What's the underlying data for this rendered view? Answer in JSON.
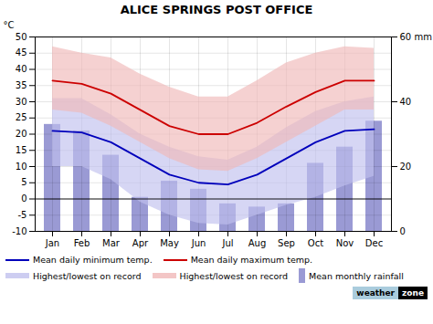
{
  "chart_data": {
    "type": "bar",
    "title": "ALICE SPRINGS POST OFFICE",
    "ylabel": "°C",
    "categories": [
      "Jan",
      "Feb",
      "Mar",
      "Apr",
      "May",
      "Jun",
      "Jul",
      "Aug",
      "Sep",
      "Oct",
      "Nov",
      "Dec"
    ],
    "series": [
      {
        "name": "Mean daily minimum temp.",
        "type": "line",
        "color": "#0000bb",
        "values": [
          21.0,
          20.5,
          17.5,
          12.5,
          7.5,
          5.0,
          4.5,
          7.5,
          12.5,
          17.5,
          21.0,
          21.5
        ]
      },
      {
        "name": "Mean daily maximum temp.",
        "type": "line",
        "color": "#cc0000",
        "values": [
          36.5,
          35.5,
          32.5,
          27.5,
          22.5,
          20.0,
          20.0,
          23.5,
          28.5,
          33.0,
          36.5,
          36.5
        ]
      },
      {
        "name": "Highest/lowest on record",
        "type": "band",
        "color": "#c0c0ee",
        "low": [
          10.0,
          10.0,
          6.0,
          -1.0,
          -5.0,
          -7.5,
          -8.0,
          -5.0,
          -2.0,
          0.5,
          4.0,
          7.0
        ],
        "high": [
          31.0,
          31.0,
          26.0,
          20.0,
          16.0,
          13.0,
          12.0,
          16.0,
          22.0,
          27.0,
          30.0,
          31.5
        ]
      },
      {
        "name": "Highest/lowest on record",
        "type": "band",
        "color": "#f0b8b8",
        "low": [
          27.5,
          26.5,
          22.5,
          17.5,
          12.5,
          9.0,
          8.5,
          12.5,
          17.5,
          22.5,
          27.5,
          27.5
        ],
        "high": [
          47.0,
          45.0,
          43.5,
          38.5,
          34.5,
          31.5,
          31.5,
          36.5,
          42.0,
          45.0,
          47.0,
          46.5
        ]
      },
      {
        "name": "Mean monthly rainfall",
        "type": "bar",
        "axis": "y2",
        "color": "#8888cc",
        "values": [
          33.0,
          31.0,
          23.5,
          10.5,
          15.5,
          13.0,
          8.5,
          7.5,
          8.5,
          21.0,
          26.0,
          34.0
        ]
      }
    ],
    "ylim": [
      -10,
      50
    ],
    "yticks": [
      -10,
      -5,
      0,
      5,
      10,
      15,
      20,
      25,
      30,
      35,
      40,
      45,
      50
    ],
    "y2lim": [
      0,
      60
    ],
    "y2ticks": [
      0,
      20,
      40,
      {
        "value": 60,
        "label": "60 mm"
      }
    ],
    "hlines": [
      0
    ],
    "grid": true,
    "legend": "bottom",
    "annotations": [
      "weather",
      "zone"
    ]
  }
}
